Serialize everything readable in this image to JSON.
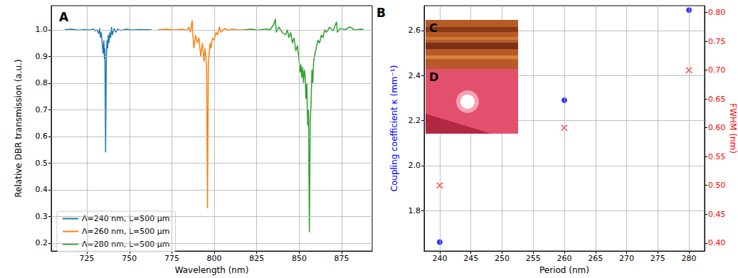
{
  "chart_data": [
    {
      "type": "line",
      "title": "A",
      "xlabel": "Wavelength (nm)",
      "ylabel": "Relative DBR transmission (a.u.)",
      "xlim": [
        704,
        893
      ],
      "xticks": [
        725,
        750,
        775,
        800,
        825,
        850,
        875
      ],
      "ylim": [
        0.17,
        1.09
      ],
      "yticks": [
        0.2,
        0.3,
        0.4,
        0.5,
        0.6,
        0.7,
        0.8,
        0.9,
        {
          "value": 1,
          "label": "1.0"
        }
      ],
      "grid": true,
      "legend": "lower left",
      "series": [
        {
          "name": "Λ=240 nm, L=500 μm",
          "color": "#1f77b4",
          "x": [
            712,
            716,
            720,
            724,
            727,
            729,
            730,
            731,
            732,
            732.5,
            733,
            733.5,
            734,
            734.5,
            735,
            735.3,
            735.6,
            736,
            736.4,
            736.8,
            737.2,
            737.6,
            738,
            738.5,
            739,
            739.5,
            740,
            741,
            742,
            743,
            745,
            748,
            752,
            756,
            760,
            763
          ],
          "values": [
            1.0,
            1.002,
            0.998,
            1.001,
            0.999,
            1.003,
            0.995,
            1.0,
            0.985,
            1.005,
            0.97,
            0.99,
            0.95,
            0.91,
            0.96,
            0.89,
            0.93,
            0.54,
            0.88,
            0.96,
            0.93,
            0.98,
            0.95,
            0.99,
            0.97,
            1.01,
            0.98,
            1.005,
            0.99,
            1.002,
            0.997,
            1.002,
            0.999,
            1.001,
            1.0,
            1.0
          ]
        },
        {
          "name": "Λ=260 nm, L=500 μm",
          "color": "#ff7f0e",
          "x": [
            767,
            772,
            777,
            781,
            784,
            785,
            786,
            787,
            787.5,
            788,
            789,
            790,
            791,
            792,
            793,
            794,
            794.5,
            795,
            795.5,
            796,
            796.5,
            797,
            797.5,
            798,
            799,
            800,
            801,
            802,
            803,
            804,
            806,
            808,
            811,
            814,
            818
          ],
          "values": [
            1.0,
            1.002,
            0.999,
            1.002,
            0.998,
            1.01,
            0.99,
            1.035,
            0.97,
            0.93,
            0.98,
            0.95,
            0.97,
            0.9,
            0.95,
            0.88,
            0.93,
            0.9,
            0.86,
            0.33,
            0.87,
            0.91,
            0.95,
            0.93,
            0.97,
            0.96,
            0.99,
            0.98,
            1.01,
            0.99,
            1.005,
            0.998,
            1.002,
            0.999,
            1.0
          ]
        },
        {
          "name": "Λ=280 nm, L=500 μm",
          "color": "#2ca02c",
          "x": [
            818,
            822,
            826,
            830,
            833,
            835,
            836,
            836.5,
            838,
            840,
            842,
            843,
            844,
            845,
            846,
            847,
            848,
            849,
            850,
            850.5,
            851,
            851.5,
            852,
            852.5,
            853,
            853.5,
            854,
            854.5,
            855,
            855.5,
            856,
            856.5,
            857,
            857.5,
            858,
            858.5,
            859,
            860,
            861,
            862,
            863,
            864,
            865,
            866,
            868,
            870,
            872,
            872.5,
            874,
            877,
            880,
            883,
            886,
            888
          ],
          "values": [
            1.0,
            1.002,
            0.998,
            1.003,
            1.0,
            1.02,
            1.04,
            0.99,
            1.01,
            0.99,
            0.98,
            1.0,
            0.97,
            0.99,
            0.95,
            0.97,
            0.92,
            0.94,
            0.88,
            0.84,
            0.87,
            0.82,
            0.86,
            0.8,
            0.85,
            0.83,
            0.74,
            0.8,
            0.64,
            0.7,
            0.24,
            0.66,
            0.72,
            0.85,
            0.8,
            0.88,
            0.9,
            0.93,
            0.96,
            0.95,
            0.98,
            0.97,
            1.0,
            0.99,
            1.01,
            0.995,
            1.03,
            0.99,
            1.005,
            1.0,
            1.01,
            0.998,
            1.002,
            1.0
          ]
        }
      ]
    },
    {
      "type": "scatter",
      "title": "B",
      "xlabel": "Period (nm)",
      "ylabel": "Coupling coefficient κ (mm⁻¹)",
      "y2label": "FWHM (nm)",
      "xlim": [
        237.5,
        282.5
      ],
      "xticks": [
        240,
        245,
        250,
        255,
        260,
        265,
        270,
        275,
        280
      ],
      "ylim": [
        1.62,
        2.71
      ],
      "yticks": [
        1.8,
        {
          "value": 2,
          "label": "2.0"
        },
        2.2,
        2.4,
        2.6
      ],
      "y2lim": [
        0.386,
        0.812
      ],
      "y2ticks": [
        {
          "value": 0.4,
          "label": "0.40"
        },
        0.45,
        {
          "value": 0.5,
          "label": "0.50"
        },
        0.55,
        {
          "value": 0.6,
          "label": "0.60"
        },
        0.65,
        {
          "value": 0.7,
          "label": "0.70"
        },
        0.75,
        {
          "value": 0.8,
          "label": "0.80"
        }
      ],
      "grid": true,
      "annotations": [
        "C",
        "D"
      ],
      "x": [
        240,
        260,
        280
      ],
      "series": [
        {
          "color": "#0000ff",
          "marker": "o",
          "values": [
            1.66,
            2.29,
            2.69
          ]
        },
        {
          "color": "#ff0000",
          "marker": "x",
          "axis": "y2",
          "values": [
            0.5,
            0.6,
            0.7
          ]
        }
      ]
    }
  ]
}
